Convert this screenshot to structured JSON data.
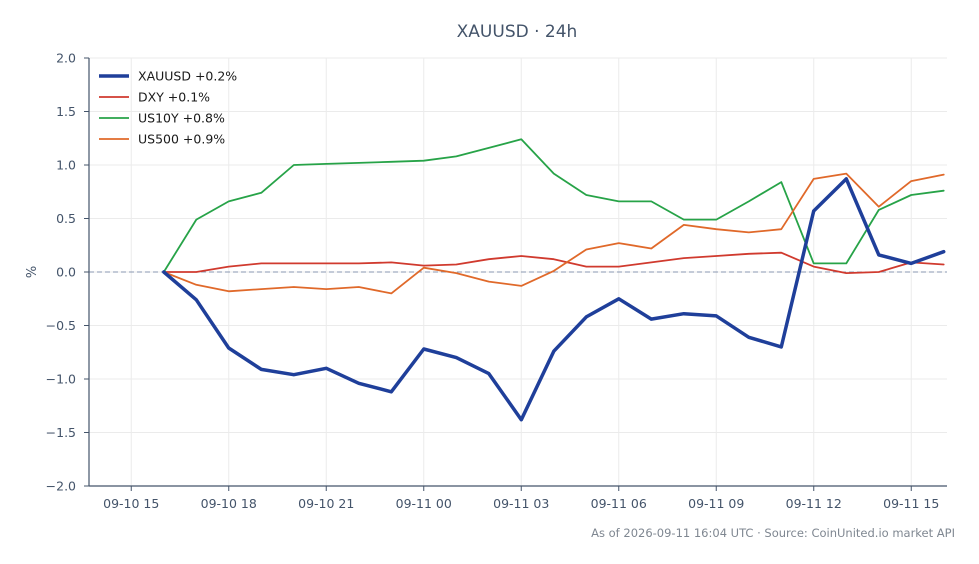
{
  "chart_data": {
    "type": "line",
    "title": "XAUUSD · 24h",
    "xlabel": "",
    "ylabel": "%",
    "ylim": [
      -2.0,
      2.0
    ],
    "yticks": [
      "2.0",
      "1.5",
      "1.0",
      "0.5",
      "0.0",
      "−0.5",
      "−1.0",
      "−1.5",
      "−2.0"
    ],
    "ytick_values": [
      2.0,
      1.5,
      1.0,
      0.5,
      0.0,
      -0.5,
      -1.0,
      -1.5,
      -2.0
    ],
    "x_range_hours": [
      -1.3,
      25.1
    ],
    "xticks": [
      "09-10 15",
      "09-10 18",
      "09-10 21",
      "09-11 00",
      "09-11 03",
      "09-11 06",
      "09-11 09",
      "09-11 12",
      "09-11 15"
    ],
    "xtick_hours": [
      0,
      3,
      6,
      9,
      12,
      15,
      18,
      21,
      24
    ],
    "x_hours": [
      1,
      2,
      3,
      4,
      5,
      6,
      7,
      8,
      9,
      10,
      11,
      12,
      13,
      14,
      15,
      16,
      17,
      18,
      19,
      20,
      21,
      22,
      23,
      24,
      25
    ],
    "x_labels": [
      "09-10 16",
      "09-10 17",
      "09-10 18",
      "09-10 19",
      "09-10 20",
      "09-10 21",
      "09-10 22",
      "09-10 23",
      "09-11 00",
      "09-11 01",
      "09-11 02",
      "09-11 03",
      "09-11 04",
      "09-11 05",
      "09-11 06",
      "09-11 07",
      "09-11 08",
      "09-11 09",
      "09-11 10",
      "09-11 11",
      "09-11 12",
      "09-11 13",
      "09-11 14",
      "09-11 15",
      "09-11 16"
    ],
    "zero_line": true,
    "grid": true,
    "legend_position": "top-left",
    "series": [
      {
        "name": "XAUUSD +0.2%",
        "color": "#1f3f9a",
        "width": 3.5,
        "values": [
          0.0,
          -0.26,
          -0.71,
          -0.91,
          -0.96,
          -0.9,
          -1.04,
          -1.12,
          -0.72,
          -0.8,
          -0.95,
          -1.38,
          -0.74,
          -0.42,
          -0.25,
          -0.44,
          -0.39,
          -0.41,
          -0.61,
          -0.7,
          0.57,
          0.87,
          0.16,
          0.08,
          0.19
        ]
      },
      {
        "name": "DXY +0.1%",
        "color": "#d03a2e",
        "width": 1.8,
        "values": [
          0.0,
          0.0,
          0.05,
          0.08,
          0.08,
          0.08,
          0.08,
          0.09,
          0.06,
          0.07,
          0.12,
          0.15,
          0.12,
          0.05,
          0.05,
          0.09,
          0.13,
          0.15,
          0.17,
          0.18,
          0.05,
          -0.01,
          0.0,
          0.09,
          0.07
        ]
      },
      {
        "name": "US10Y +0.8%",
        "color": "#27a348",
        "width": 1.8,
        "values": [
          0.0,
          0.49,
          0.66,
          0.74,
          1.0,
          1.01,
          1.02,
          1.03,
          1.04,
          1.08,
          1.16,
          1.24,
          0.92,
          0.72,
          0.66,
          0.66,
          0.49,
          0.49,
          0.66,
          0.84,
          0.08,
          0.08,
          0.58,
          0.72,
          0.76
        ]
      },
      {
        "name": "US500 +0.9%",
        "color": "#e0692a",
        "width": 1.8,
        "values": [
          0.0,
          -0.12,
          -0.18,
          -0.16,
          -0.14,
          -0.16,
          -0.14,
          -0.2,
          0.04,
          -0.01,
          -0.09,
          -0.13,
          0.01,
          0.21,
          0.27,
          0.22,
          0.44,
          0.4,
          0.37,
          0.4,
          0.87,
          0.92,
          0.61,
          0.85,
          0.91
        ]
      }
    ]
  },
  "footer": "As of 2026-09-11 16:04 UTC · Source: CoinUnited.io market API"
}
